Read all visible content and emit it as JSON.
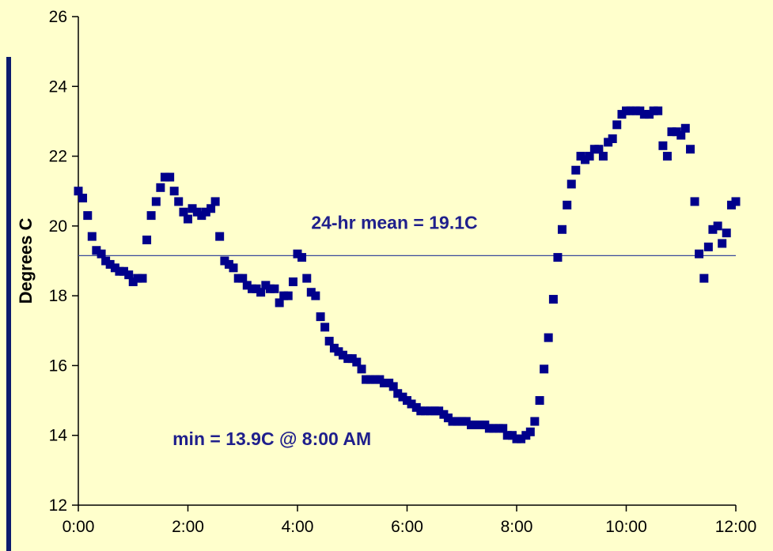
{
  "colors": {
    "background": "#FFFFCC",
    "marker": "#00008B",
    "annotation": "#1F1F8C",
    "mean_line": "#3A4A9A",
    "left_bar": "#0B1A6E"
  },
  "chart_data": {
    "type": "scatter",
    "title": "",
    "xlabel": "",
    "ylabel": "Degrees C",
    "x_unit": "hours",
    "xlim": [
      0,
      12
    ],
    "ylim": [
      12,
      26
    ],
    "xticks": [
      0,
      2,
      4,
      6,
      8,
      10,
      12
    ],
    "xtick_labels": [
      "0:00",
      "2:00",
      "4:00",
      "6:00",
      "8:00",
      "10:00",
      "12:00"
    ],
    "yticks": [
      12,
      14,
      16,
      18,
      20,
      22,
      24,
      26
    ],
    "ytick_labels": [
      "12",
      "14",
      "16",
      "18",
      "20",
      "22",
      "24",
      "26"
    ],
    "grid": false,
    "marker": "square",
    "reference_line": {
      "y": 19.15,
      "label": "24-hr mean = 19.1C"
    },
    "annotations": [
      {
        "text": "24-hr mean = 19.1C",
        "x": 4.25,
        "y": 20.1
      },
      {
        "text": "min = 13.9C @ 8:00 AM",
        "x": 1.72,
        "y": 13.9
      }
    ],
    "series": [
      {
        "x": [
          0.0,
          0.08,
          0.17,
          0.25,
          0.33,
          0.42,
          0.5,
          0.58,
          0.67,
          0.75,
          0.83,
          0.92,
          1.0,
          1.08,
          1.17,
          1.25,
          1.33,
          1.42,
          1.5,
          1.58,
          1.67,
          1.75,
          1.83,
          1.92,
          2.0,
          2.08,
          2.17,
          2.25,
          2.33,
          2.42,
          2.5,
          2.58,
          2.67,
          2.75,
          2.83,
          2.92,
          3.0,
          3.08,
          3.17,
          3.25,
          3.33,
          3.42,
          3.5,
          3.58,
          3.67,
          3.75,
          3.83,
          3.92,
          4.0,
          4.08,
          4.17,
          4.25,
          4.33,
          4.42,
          4.5,
          4.58,
          4.67,
          4.75,
          4.83,
          4.92,
          5.0,
          5.08,
          5.17,
          5.25,
          5.33,
          5.42,
          5.5,
          5.58,
          5.67,
          5.75,
          5.83,
          5.92,
          6.0,
          6.08,
          6.17,
          6.25,
          6.33,
          6.42,
          6.5,
          6.58,
          6.67,
          6.75,
          6.83,
          6.92,
          7.0,
          7.08,
          7.17,
          7.25,
          7.33,
          7.42,
          7.5,
          7.58,
          7.67,
          7.75,
          7.83,
          7.92,
          8.0,
          8.08,
          8.17,
          8.25,
          8.33,
          8.42,
          8.5,
          8.58,
          8.67,
          8.75,
          8.83,
          8.92,
          9.0,
          9.08,
          9.17,
          9.25,
          9.33,
          9.42,
          9.5,
          9.58,
          9.67,
          9.75,
          9.83,
          9.92,
          10.0,
          10.08,
          10.17,
          10.25,
          10.33,
          10.42,
          10.5,
          10.58,
          10.67,
          10.75,
          10.83,
          10.92,
          11.0,
          11.08,
          11.17,
          11.25,
          11.33,
          11.42,
          11.5,
          11.58,
          11.67,
          11.75,
          11.83,
          11.92,
          12.0
        ],
        "y": [
          21.0,
          20.8,
          20.3,
          19.7,
          19.3,
          19.2,
          19.0,
          18.9,
          18.8,
          18.7,
          18.7,
          18.6,
          18.4,
          18.5,
          18.5,
          19.6,
          20.3,
          20.7,
          21.1,
          21.4,
          21.4,
          21.0,
          20.7,
          20.4,
          20.2,
          20.5,
          20.4,
          20.3,
          20.4,
          20.5,
          20.7,
          19.7,
          19.0,
          18.9,
          18.8,
          18.5,
          18.5,
          18.3,
          18.2,
          18.2,
          18.1,
          18.3,
          18.2,
          18.2,
          17.8,
          18.0,
          18.0,
          18.4,
          19.2,
          19.1,
          18.5,
          18.1,
          18.0,
          17.4,
          17.1,
          16.7,
          16.5,
          16.4,
          16.3,
          16.2,
          16.2,
          16.1,
          15.9,
          15.6,
          15.6,
          15.6,
          15.6,
          15.5,
          15.5,
          15.4,
          15.2,
          15.1,
          15.0,
          14.9,
          14.8,
          14.7,
          14.7,
          14.7,
          14.7,
          14.7,
          14.6,
          14.5,
          14.4,
          14.4,
          14.4,
          14.4,
          14.3,
          14.3,
          14.3,
          14.3,
          14.2,
          14.2,
          14.2,
          14.2,
          14.0,
          14.0,
          13.9,
          13.9,
          14.0,
          14.1,
          14.4,
          15.0,
          15.9,
          16.8,
          17.9,
          19.1,
          19.9,
          20.6,
          21.2,
          21.6,
          22.0,
          21.9,
          22.0,
          22.2,
          22.2,
          22.0,
          22.4,
          22.5,
          22.9,
          23.2,
          23.3,
          23.3,
          23.3,
          23.3,
          23.2,
          23.2,
          23.3,
          23.3,
          22.3,
          22.0,
          22.7,
          22.7,
          22.6,
          22.8,
          22.2,
          20.7,
          19.2,
          18.5,
          19.4,
          19.9,
          20.0,
          19.5,
          19.8,
          20.6,
          20.7
        ]
      }
    ]
  }
}
